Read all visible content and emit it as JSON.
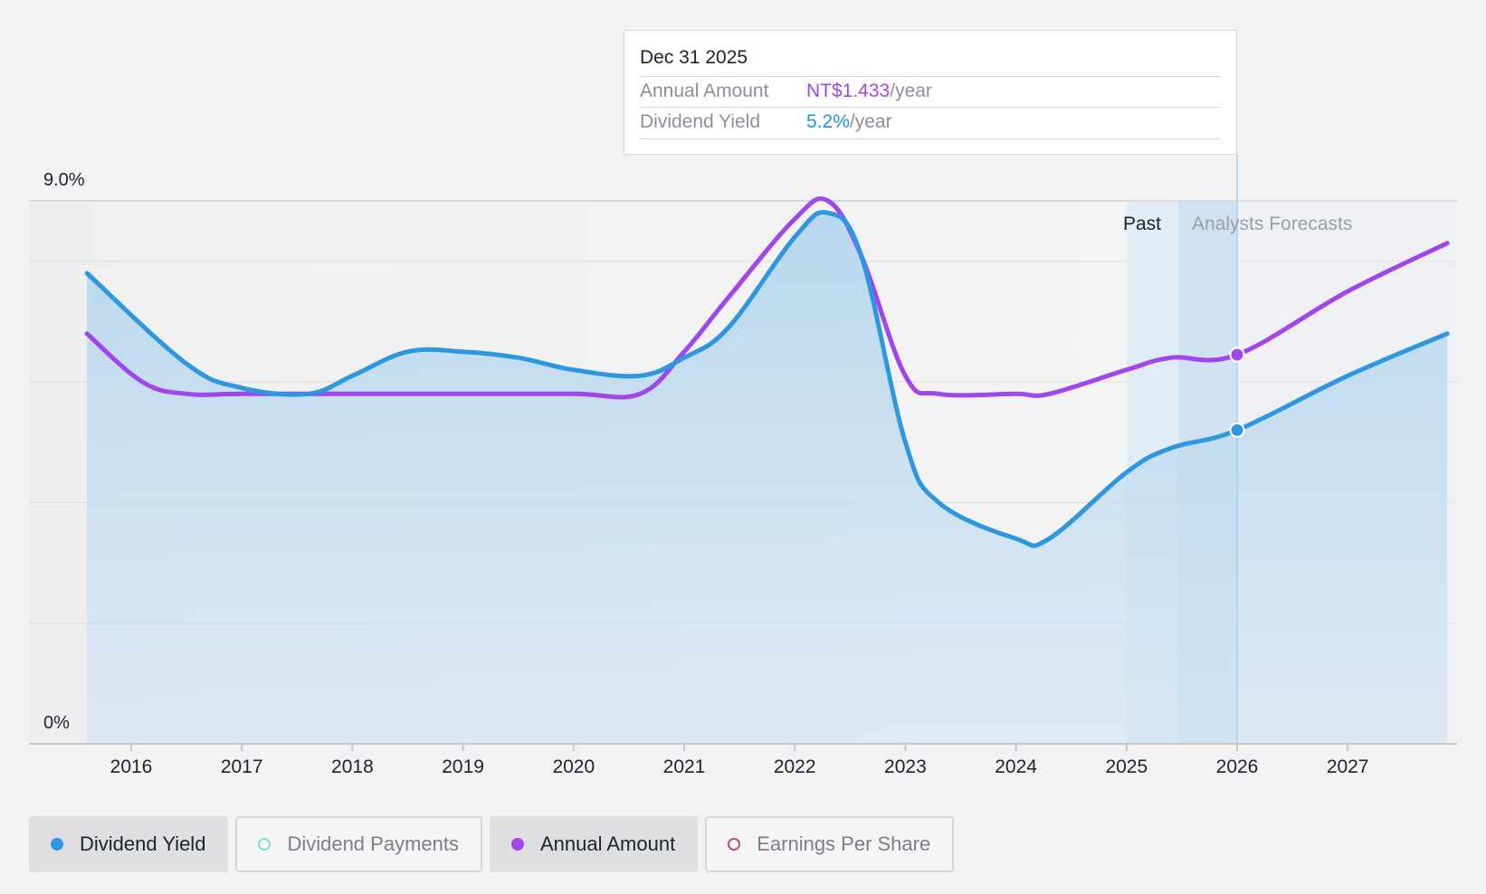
{
  "chart_data": {
    "type": "area",
    "x_ticks": [
      "2016",
      "2017",
      "2018",
      "2019",
      "2020",
      "2021",
      "2022",
      "2023",
      "2024",
      "2025",
      "2026",
      "2027"
    ],
    "y_labels": {
      "top": "9.0%",
      "bottom": "0%"
    },
    "ylim": [
      0,
      9.0
    ],
    "grid": true,
    "period_labels": {
      "past": "Past",
      "forecast": "Analysts Forecasts"
    },
    "series": [
      {
        "name": "Dividend Yield",
        "color": "#2d97e0",
        "filled": true,
        "points": [
          [
            2015.6,
            7.8
          ],
          [
            2016.5,
            6.3
          ],
          [
            2017.0,
            5.9
          ],
          [
            2017.6,
            5.8
          ],
          [
            2018.0,
            6.1
          ],
          [
            2018.5,
            6.5
          ],
          [
            2019.0,
            6.5
          ],
          [
            2019.5,
            6.4
          ],
          [
            2020.0,
            6.2
          ],
          [
            2020.6,
            6.1
          ],
          [
            2021.0,
            6.4
          ],
          [
            2021.4,
            6.9
          ],
          [
            2022.0,
            8.4
          ],
          [
            2022.3,
            8.8
          ],
          [
            2022.6,
            8.1
          ],
          [
            2023.0,
            5.0
          ],
          [
            2023.3,
            4.0
          ],
          [
            2024.0,
            3.4
          ],
          [
            2024.3,
            3.4
          ],
          [
            2025.0,
            4.5
          ],
          [
            2025.4,
            4.9
          ],
          [
            2026.0,
            5.2
          ],
          [
            2027.0,
            6.1
          ],
          [
            2027.9,
            6.8
          ]
        ]
      },
      {
        "name": "Annual Amount",
        "color": "#a146ea",
        "filled": false,
        "points": [
          [
            2015.6,
            6.8
          ],
          [
            2016.1,
            6.0
          ],
          [
            2016.5,
            5.8
          ],
          [
            2017.0,
            5.8
          ],
          [
            2018.0,
            5.8
          ],
          [
            2019.0,
            5.8
          ],
          [
            2020.0,
            5.8
          ],
          [
            2020.6,
            5.8
          ],
          [
            2021.0,
            6.5
          ],
          [
            2021.4,
            7.4
          ],
          [
            2022.0,
            8.7
          ],
          [
            2022.3,
            9.0
          ],
          [
            2022.6,
            8.1
          ],
          [
            2023.0,
            6.1
          ],
          [
            2023.3,
            5.8
          ],
          [
            2024.0,
            5.8
          ],
          [
            2024.3,
            5.8
          ],
          [
            2025.0,
            6.2
          ],
          [
            2025.4,
            6.4
          ],
          [
            2026.0,
            6.45
          ],
          [
            2027.0,
            7.5
          ],
          [
            2027.9,
            8.3
          ]
        ]
      }
    ],
    "highlight_x": 2026.0,
    "tooltip": {
      "date": "Dec 31 2025",
      "rows": [
        {
          "label": "Annual Amount",
          "value": "NT$1.433",
          "unit": "/year",
          "color": "#a146ea"
        },
        {
          "label": "Dividend Yield",
          "value": "5.2%",
          "unit": "/year",
          "color": "#1b94d8"
        }
      ]
    }
  },
  "legend": [
    {
      "label": "Dividend Yield",
      "color": "#2d97e0",
      "active": true,
      "hollow": false
    },
    {
      "label": "Dividend Payments",
      "color": "#7fe0d6",
      "active": false,
      "hollow": true
    },
    {
      "label": "Annual Amount",
      "color": "#a146ea",
      "active": true,
      "hollow": false
    },
    {
      "label": "Earnings Per Share",
      "color": "#c9488a",
      "active": false,
      "hollow": true
    }
  ]
}
